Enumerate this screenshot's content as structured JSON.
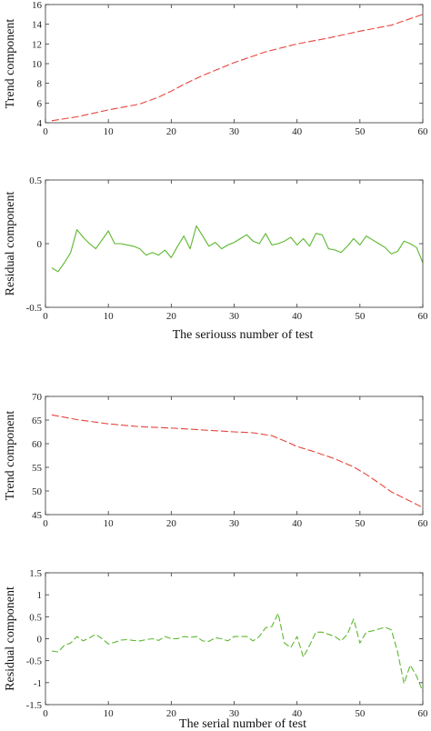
{
  "figure": {
    "xlabel_top": "The seriouss number of test",
    "xlabel_bottom": "The serial number of test"
  },
  "chart_data": [
    {
      "type": "line",
      "ylabel": "Trend component",
      "xlim": [
        0,
        60
      ],
      "ylim": [
        4,
        16
      ],
      "xticks": [
        0,
        10,
        20,
        30,
        40,
        50,
        60
      ],
      "yticks": [
        4,
        6,
        8,
        10,
        12,
        14,
        16
      ],
      "xtick_labels": [
        "0",
        "10",
        "20",
        "30",
        "40",
        "50",
        "60"
      ],
      "ytick_labels": [
        "4",
        "6",
        "8",
        "10",
        "12",
        "14",
        "16"
      ],
      "grid": false,
      "series": [
        {
          "color": "#e8453c",
          "dash": "8,3",
          "x": [
            1,
            5,
            10,
            15,
            18,
            20,
            22,
            25,
            30,
            35,
            40,
            45,
            50,
            55,
            60
          ],
          "y": [
            4.2,
            4.6,
            5.3,
            5.9,
            6.6,
            7.2,
            7.9,
            8.8,
            10.1,
            11.2,
            12.0,
            12.6,
            13.3,
            13.9,
            15.0
          ]
        }
      ]
    },
    {
      "type": "line",
      "ylabel": "Residual component",
      "xlim": [
        0,
        60
      ],
      "ylim": [
        -0.5,
        0.5
      ],
      "xticks": [
        0,
        10,
        20,
        30,
        40,
        50,
        60
      ],
      "yticks": [
        -0.5,
        0,
        0.5
      ],
      "xtick_labels": [
        "0",
        "10",
        "20",
        "30",
        "40",
        "50",
        "60"
      ],
      "ytick_labels": [
        "-0.5",
        "0",
        "0.5"
      ],
      "grid": false,
      "series": [
        {
          "color": "#5cb82e",
          "dash": "",
          "x": [
            1,
            2,
            3,
            4,
            5,
            6,
            7,
            8,
            9,
            10,
            11,
            12,
            13,
            14,
            15,
            16,
            17,
            18,
            19,
            20,
            21,
            22,
            23,
            24,
            25,
            26,
            27,
            28,
            29,
            30,
            31,
            32,
            33,
            34,
            35,
            36,
            37,
            38,
            39,
            40,
            41,
            42,
            43,
            44,
            45,
            46,
            47,
            48,
            49,
            50,
            51,
            52,
            53,
            54,
            55,
            56,
            57,
            58,
            59,
            60
          ],
          "y": [
            -0.19,
            -0.22,
            -0.15,
            -0.07,
            0.11,
            0.05,
            0.0,
            -0.04,
            0.03,
            0.1,
            0.0,
            0.0,
            -0.01,
            -0.02,
            -0.04,
            -0.09,
            -0.07,
            -0.09,
            -0.05,
            -0.11,
            -0.02,
            0.06,
            -0.04,
            0.14,
            0.06,
            -0.02,
            0.01,
            -0.04,
            -0.01,
            0.01,
            0.04,
            0.07,
            0.02,
            0.0,
            0.08,
            -0.01,
            0.0,
            0.02,
            0.05,
            -0.01,
            0.04,
            -0.02,
            0.08,
            0.07,
            -0.04,
            -0.05,
            -0.07,
            -0.02,
            0.04,
            -0.01,
            0.06,
            0.03,
            0.0,
            -0.03,
            -0.08,
            -0.06,
            0.02,
            0.0,
            -0.03,
            -0.15
          ]
        }
      ]
    },
    {
      "type": "line",
      "ylabel": "Trend component",
      "xlim": [
        0,
        60
      ],
      "ylim": [
        45,
        70
      ],
      "xticks": [
        0,
        10,
        20,
        30,
        40,
        50,
        60
      ],
      "yticks": [
        45,
        50,
        55,
        60,
        65,
        70
      ],
      "xtick_labels": [
        "0",
        "10",
        "20",
        "30",
        "40",
        "50",
        "60"
      ],
      "ytick_labels": [
        "45",
        "50",
        "55",
        "60",
        "65",
        "70"
      ],
      "grid": false,
      "series": [
        {
          "color": "#e8453c",
          "dash": "8,3",
          "x": [
            1,
            5,
            10,
            15,
            20,
            25,
            30,
            33,
            36,
            38,
            40,
            43,
            46,
            49,
            51,
            53,
            55,
            57,
            60
          ],
          "y": [
            66.1,
            65.1,
            64.2,
            63.6,
            63.3,
            62.9,
            62.5,
            62.3,
            61.7,
            60.6,
            59.4,
            58.2,
            56.8,
            55.1,
            53.5,
            51.7,
            49.8,
            48.5,
            46.5
          ]
        }
      ]
    },
    {
      "type": "line",
      "ylabel": "Residual component",
      "xlim": [
        0,
        60
      ],
      "ylim": [
        -1.5,
        1.5
      ],
      "xticks": [
        0,
        10,
        20,
        30,
        40,
        50,
        60
      ],
      "yticks": [
        -1.5,
        -1,
        -0.5,
        0,
        0.5,
        1,
        1.5
      ],
      "xtick_labels": [
        "0",
        "10",
        "20",
        "30",
        "40",
        "50",
        "60"
      ],
      "ytick_labels": [
        "-1.5",
        "-1",
        "-0.5",
        "0",
        "0.5",
        "1",
        "1.5"
      ],
      "grid": false,
      "series": [
        {
          "color": "#5cb82e",
          "dash": "7,3",
          "x": [
            1,
            2,
            3,
            4,
            5,
            6,
            7,
            8,
            9,
            10,
            11,
            12,
            13,
            14,
            15,
            16,
            17,
            18,
            19,
            20,
            21,
            22,
            23,
            24,
            25,
            26,
            27,
            28,
            29,
            30,
            31,
            32,
            33,
            34,
            35,
            36,
            37,
            38,
            39,
            40,
            41,
            42,
            43,
            44,
            45,
            46,
            47,
            48,
            49,
            50,
            51,
            52,
            53,
            54,
            55,
            56,
            57,
            58,
            59,
            60
          ],
          "y": [
            -0.28,
            -0.3,
            -0.15,
            -0.1,
            0.05,
            -0.05,
            0.02,
            0.1,
            0.0,
            -0.12,
            -0.08,
            -0.03,
            -0.02,
            -0.04,
            -0.05,
            -0.02,
            0.0,
            -0.04,
            0.05,
            0.0,
            0.0,
            0.05,
            0.03,
            0.05,
            -0.05,
            -0.06,
            0.02,
            0.0,
            -0.05,
            0.05,
            0.05,
            0.05,
            -0.05,
            0.05,
            0.25,
            0.28,
            0.58,
            -0.1,
            -0.2,
            0.05,
            -0.42,
            -0.15,
            0.15,
            0.15,
            0.1,
            0.05,
            -0.05,
            0.1,
            0.45,
            -0.1,
            0.15,
            0.18,
            0.22,
            0.26,
            0.2,
            -0.3,
            -1.02,
            -0.6,
            -0.85,
            -1.2
          ]
        }
      ]
    }
  ]
}
